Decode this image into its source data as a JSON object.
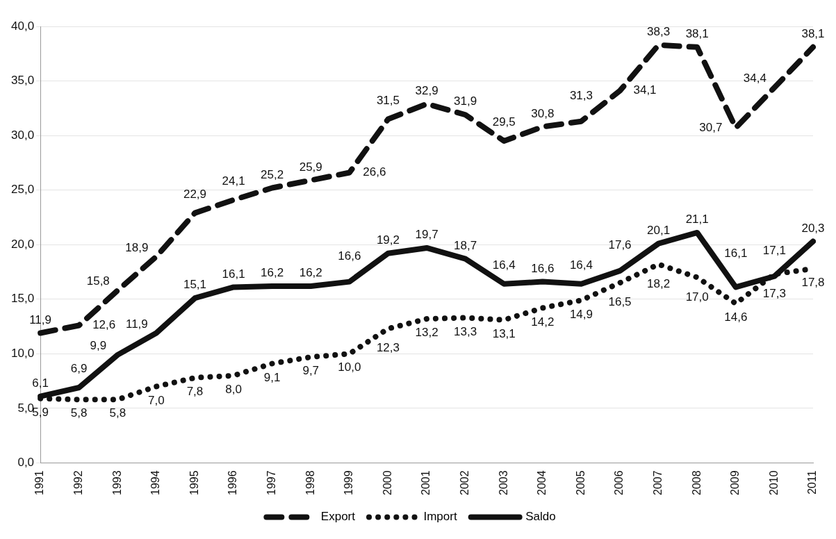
{
  "chart_data": {
    "type": "line",
    "categories": [
      "1991",
      "1992",
      "1993",
      "1994",
      "1995",
      "1996",
      "1997",
      "1998",
      "1999",
      "2000",
      "2001",
      "2002",
      "2003",
      "2004",
      "2005",
      "2006",
      "2007",
      "2008",
      "2009",
      "2010",
      "2011"
    ],
    "ylim": [
      0,
      40
    ],
    "yticks": [
      {
        "value": 0,
        "label": "0,0"
      },
      {
        "value": 5,
        "label": "5,0"
      },
      {
        "value": 10,
        "label": "10,0"
      },
      {
        "value": 15,
        "label": "15,0"
      },
      {
        "value": 20,
        "label": "20,0"
      },
      {
        "value": 25,
        "label": "25,0"
      },
      {
        "value": 30,
        "label": "30,0"
      },
      {
        "value": 35,
        "label": "35,0"
      },
      {
        "value": 40,
        "label": "40,0"
      }
    ],
    "grid": "y",
    "legend": "bottom",
    "marker": "none",
    "series": [
      {
        "name": "Export",
        "color": "#111111",
        "line_style": "dashed",
        "values": [
          11.9,
          12.6,
          15.8,
          18.9,
          22.9,
          24.1,
          25.2,
          25.9,
          26.6,
          31.5,
          32.9,
          31.9,
          29.5,
          30.8,
          31.3,
          34.1,
          38.3,
          38.1,
          30.7,
          34.4,
          38.1
        ],
        "value_labels": [
          "11,9",
          "12,6",
          "15,8",
          "18,9",
          "22,9",
          "24,1",
          "25,2",
          "25,9",
          "26,6",
          "31,5",
          "32,9",
          "31,9",
          "29,5",
          "30,8",
          "31,3",
          "34,1",
          "38,3",
          "38,1",
          "30,7",
          "34,4",
          "38,1"
        ]
      },
      {
        "name": "Import",
        "color": "#111111",
        "line_style": "dotted",
        "values": [
          5.9,
          5.8,
          5.8,
          7.0,
          7.8,
          8.0,
          9.1,
          9.7,
          10.0,
          12.3,
          13.2,
          13.3,
          13.1,
          14.2,
          14.9,
          16.5,
          18.2,
          17.0,
          14.6,
          17.3,
          17.8
        ],
        "value_labels": [
          "5,9",
          "5,8",
          "5,8",
          "7,0",
          "7,8",
          "8,0",
          "9,1",
          "9,7",
          "10,0",
          "12,3",
          "13,2",
          "13,3",
          "13,1",
          "14,2",
          "14,9",
          "16,5",
          "18,2",
          "17,0",
          "14,6",
          "17,3",
          "17,8"
        ]
      },
      {
        "name": "Saldo",
        "color": "#111111",
        "line_style": "solid",
        "values": [
          6.1,
          6.9,
          9.9,
          11.9,
          15.1,
          16.1,
          16.2,
          16.2,
          16.6,
          19.2,
          19.7,
          18.7,
          16.4,
          16.6,
          16.4,
          17.6,
          20.1,
          21.1,
          16.1,
          17.1,
          20.3
        ],
        "value_labels": [
          "6,1",
          "6,9",
          "9,9",
          "11,9",
          "15,1",
          "16,1",
          "16,2",
          "16,2",
          "16,6",
          "19,2",
          "19,7",
          "18,7",
          "16,4",
          "16,6",
          "16,4",
          "17,6",
          "20,1",
          "21,1",
          "16,1",
          "17,1",
          "20,3"
        ]
      }
    ]
  }
}
